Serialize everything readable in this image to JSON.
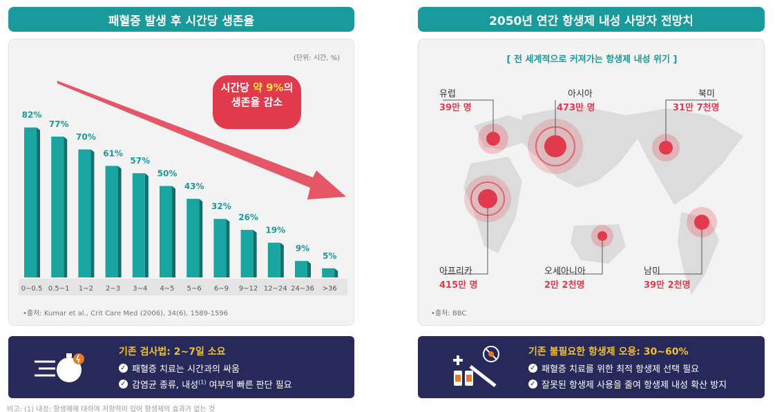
{
  "left": {
    "header": "패혈증 발생 후 시간당 생존율",
    "unit": "(단위: 시간, %)",
    "bubble_line1_prefix": "시간당 ",
    "bubble_line1_highlight": "약 9%",
    "bubble_line1_suffix": "의",
    "bubble_line2": "생존율 감소",
    "source": "•출처: Kumar et al., Crit Care Med (2006), 34(6), 1589-1596",
    "info": {
      "title": "기존 검사법: 2~7일 소요",
      "line1": "패혈증 치료는 시간과의 싸움",
      "line2_a": "감염균 종류, 내성",
      "line2_sup": "(1)",
      "line2_b": " 여부의 빠른 판단 필요"
    }
  },
  "right": {
    "header": "2050년 연간 항생제 내성 사망자 전망치",
    "subtitle": "[ 전 세계적으로 커져가는 항생제 내성 위기 ]",
    "regions": [
      {
        "name": "유럽",
        "value": "39만 명"
      },
      {
        "name": "아시아",
        "value": "473만 명"
      },
      {
        "name": "북미",
        "value": "31만 7천명"
      },
      {
        "name": "아프리카",
        "value": "415만 명"
      },
      {
        "name": "오세아니아",
        "value": "2만 2천명"
      },
      {
        "name": "남미",
        "value": "39만 2천명"
      }
    ],
    "source": "•출처: BBC",
    "info": {
      "title": "기존 불필요한 항생제 오용: 30~60%",
      "line1": "패혈증 치료를 위한 최적 항생제 선택 필요",
      "line2": "잘못된 항생제 사용을 줄여 항생제 내성 확산 방지"
    }
  },
  "footer": "비고: (1) 내성: 항생제에 대하여 저항력이 있어 항생제의 효과가 없는 것",
  "colors": {
    "teal": "#1a9a9a",
    "red": "#e23a4d",
    "navy": "#26295a",
    "gold": "#f0c030"
  },
  "chart_data": {
    "type": "bar",
    "title": "패혈증 발생 후 시간당 생존율",
    "categories": [
      "0~0.5",
      "0.5~1",
      "1~2",
      "2~3",
      "3~4",
      "4~5",
      "5~6",
      "6~9",
      "9~12",
      "12~24",
      "24~36",
      ">36"
    ],
    "values": [
      82,
      77,
      70,
      61,
      57,
      50,
      43,
      32,
      26,
      19,
      9,
      5
    ],
    "value_labels": [
      "82%",
      "77%",
      "70%",
      "61%",
      "57%",
      "50%",
      "43%",
      "32%",
      "26%",
      "19%",
      "9%",
      "5%"
    ],
    "ylim": [
      0,
      100
    ],
    "grid": false,
    "xlabel": "",
    "ylabel": ""
  }
}
